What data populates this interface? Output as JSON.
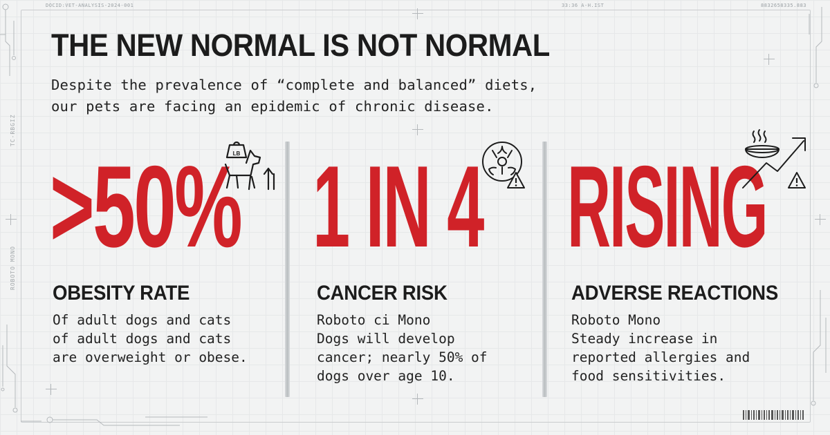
{
  "meta": {
    "doc_id": "DOCID:VET-ANALYSIS-2024-001",
    "timestamp": "33:36 A-H.IST",
    "serial": "8832658335.883",
    "side_left": "ROBOTO MONO",
    "side_left_small": "TC-RBGIZ"
  },
  "headline": "THE NEW NORMAL IS NOT NORMAL",
  "subhead": {
    "line1": "Despite the prevalence of “complete and balanced” diets,",
    "line2": "our pets are facing an epidemic of chronic disease."
  },
  "stats": [
    {
      "value": ">50%",
      "label": "OBESITY RATE",
      "lines": [
        "Of adult dogs and cats",
        "of adult dogs and cats",
        "are overweight or obese."
      ],
      "icon": "dog-weight-icon",
      "icon_text": "LB"
    },
    {
      "value": "1 IN 4",
      "label": "CANCER RISK",
      "lines": [
        "Roboto ci Mono",
        "Dogs will develop",
        "cancer; nearly 50% of",
        "dogs over age 10."
      ],
      "icon": "biohazard-icon"
    },
    {
      "value": "RISING",
      "label": "ADVERSE REACTIONS",
      "lines": [
        "Roboto Mono",
        "Steady increase in",
        "reported allergies and",
        "food sensitivities."
      ],
      "icon": "food-bowl-rising-arrow-icon"
    }
  ],
  "colors": {
    "accent": "#d02228",
    "text": "#1c1c1c",
    "background": "#f2f3f3"
  }
}
